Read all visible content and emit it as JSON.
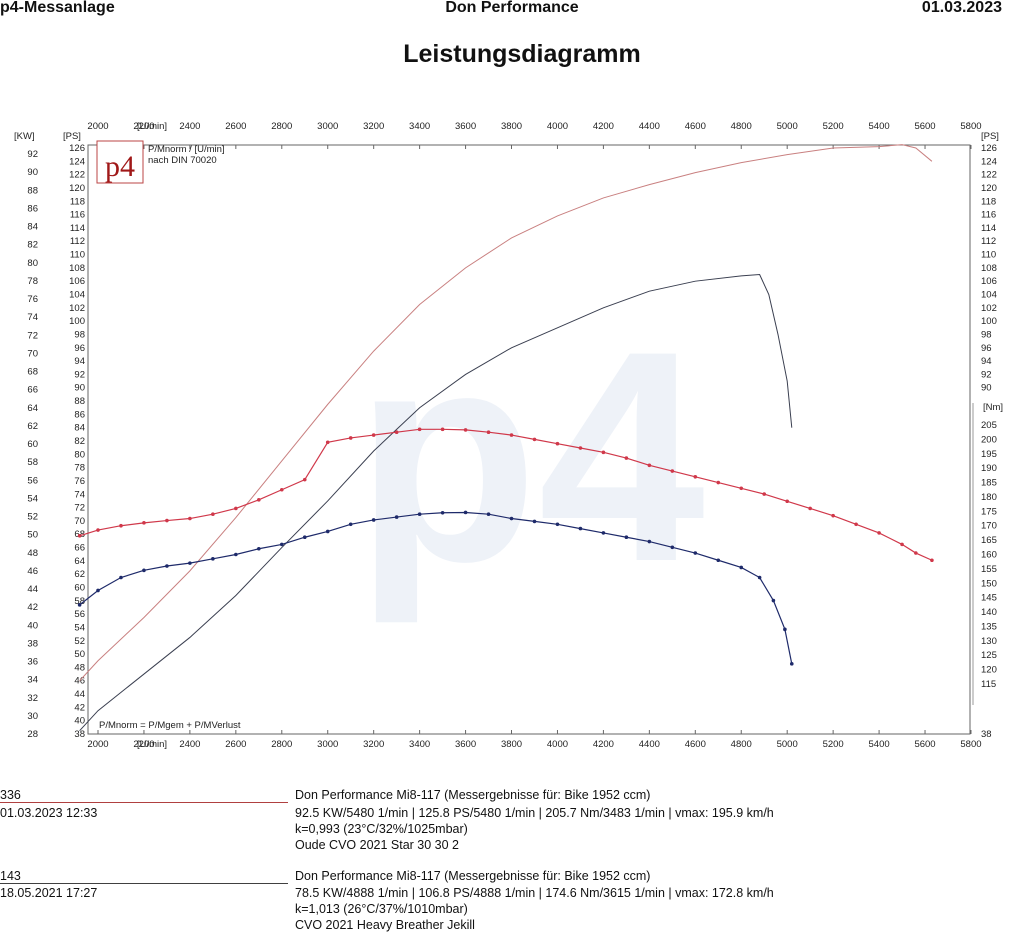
{
  "header": {
    "left": "p4-Messanlage",
    "center": "Don Performance",
    "right": "01.03.2023"
  },
  "title": "Leistungsdiagramm",
  "logo": {
    "text": "p4"
  },
  "legend_box": {
    "line1": "P/Mnorm / [U/min]",
    "line2": "nach DIN 70020"
  },
  "bottom_note": "P/Mnorm = P/Mgem + P/MVerlust",
  "axis_units": {
    "x": "[U/min]",
    "kw": "[KW]",
    "ps_left": "[PS]",
    "ps_right": "[PS]",
    "nm": "[Nm]"
  },
  "chart_data": {
    "type": "line",
    "x_ticks": [
      2000,
      2200,
      2400,
      2600,
      2800,
      3000,
      3200,
      3400,
      3600,
      3800,
      4000,
      4200,
      4400,
      4600,
      4800,
      5000,
      5200,
      5400,
      5600,
      5800
    ],
    "x_unit_position_after": 2000,
    "xlim": [
      1900,
      5800
    ],
    "kw_ticks": [
      28,
      30,
      32,
      34,
      36,
      38,
      40,
      42,
      44,
      46,
      48,
      50,
      52,
      54,
      56,
      58,
      60,
      62,
      64,
      66,
      68,
      70,
      72,
      74,
      76,
      78,
      80,
      82,
      84,
      86,
      88,
      90,
      92
    ],
    "ps_left_ticks": [
      38,
      40,
      42,
      44,
      46,
      48,
      50,
      52,
      54,
      56,
      58,
      60,
      62,
      64,
      66,
      68,
      70,
      72,
      74,
      76,
      78,
      80,
      82,
      84,
      86,
      88,
      90,
      92,
      94,
      96,
      98,
      100,
      102,
      104,
      106,
      108,
      110,
      112,
      114,
      116,
      118,
      120,
      122,
      124,
      126
    ],
    "ps_right_ticks": [
      90,
      92,
      94,
      96,
      98,
      100,
      102,
      104,
      106,
      108,
      110,
      112,
      114,
      116,
      118,
      120,
      122,
      124,
      126
    ],
    "nm_ticks": [
      115,
      120,
      125,
      130,
      135,
      140,
      145,
      150,
      155,
      160,
      165,
      170,
      175,
      180,
      185,
      190,
      195,
      200,
      205
    ],
    "nm_bottom_label": "38",
    "ps_range": [
      38,
      127
    ],
    "nm_range": [
      98.3,
      211.3
    ],
    "series": [
      {
        "kind": "power",
        "color": "#c98080",
        "rpm": [
          1920,
          2000,
          2200,
          2400,
          2600,
          2800,
          3000,
          3200,
          3400,
          3600,
          3800,
          4000,
          4200,
          4400,
          4600,
          4800,
          5000,
          5200,
          5400,
          5500,
          5560,
          5630
        ],
        "ps": [
          46,
          49,
          55.5,
          62.5,
          70.5,
          79,
          87.5,
          95.5,
          102.5,
          108,
          112.5,
          115.8,
          118.5,
          120.5,
          122.3,
          123.8,
          125,
          126,
          126.2,
          126.5,
          126,
          124
        ]
      },
      {
        "kind": "power",
        "color": "#3a3f50",
        "rpm": [
          1920,
          2000,
          2200,
          2400,
          2600,
          2800,
          3000,
          3200,
          3400,
          3600,
          3800,
          4000,
          4200,
          4400,
          4600,
          4800,
          4880,
          4920,
          4960,
          5000,
          5020
        ],
        "ps": [
          38.5,
          41.5,
          47,
          52.5,
          58.8,
          66,
          73,
          80.5,
          87,
          92,
          96,
          99,
          102,
          104.5,
          106,
          106.8,
          107,
          104,
          98,
          91,
          84
        ]
      },
      {
        "kind": "torque",
        "color": "#d0384a",
        "rpm": [
          1920,
          2000,
          2100,
          2200,
          2300,
          2400,
          2500,
          2600,
          2700,
          2800,
          2900,
          3000,
          3100,
          3200,
          3300,
          3400,
          3500,
          3600,
          3700,
          3800,
          3900,
          4000,
          4100,
          4200,
          4300,
          4400,
          4500,
          4600,
          4700,
          4800,
          4900,
          5000,
          5100,
          5200,
          5300,
          5400,
          5500,
          5560,
          5630
        ],
        "nm": [
          166.5,
          168.5,
          170,
          171,
          171.8,
          172.5,
          174,
          176,
          179,
          182.5,
          186,
          199,
          200.5,
          201.5,
          202.5,
          203.5,
          203.5,
          203.3,
          202.5,
          201.5,
          200,
          198.5,
          197,
          195.5,
          193.5,
          191,
          189,
          187,
          185,
          183,
          181,
          178.5,
          176,
          173.5,
          170.5,
          167.5,
          163.5,
          160.5,
          158
        ]
      },
      {
        "kind": "torque",
        "color": "#1e2a6a",
        "rpm": [
          1920,
          2000,
          2100,
          2200,
          2300,
          2400,
          2500,
          2600,
          2700,
          2800,
          2900,
          3000,
          3100,
          3200,
          3300,
          3400,
          3500,
          3600,
          3700,
          3800,
          3900,
          4000,
          4100,
          4200,
          4300,
          4400,
          4500,
          4600,
          4700,
          4800,
          4880,
          4940,
          4990,
          5020
        ],
        "nm": [
          142.5,
          147.5,
          152,
          154.5,
          156,
          157,
          158.5,
          160,
          162,
          163.5,
          166,
          168,
          170.5,
          172,
          173,
          174,
          174.5,
          174.6,
          174,
          172.5,
          171.5,
          170.5,
          169,
          167.5,
          166,
          164.5,
          162.5,
          160.5,
          158,
          155.5,
          152,
          144,
          134,
          122
        ]
      }
    ]
  },
  "records": [
    {
      "run_no": "336",
      "datetime": "01.03.2023  12:33",
      "line_color": "#b04040",
      "l1": "Don Performance Mi8-117 (Messergebnisse für: Bike 1952 ccm)",
      "l2": "92.5 KW/5480 1/min  |  125.8 PS/5480 1/min  |  205.7 Nm/3483 1/min | vmax: 195.9 km/h",
      "l3": "k=0,993 (23°C/32%/1025mbar)",
      "l4": "Oude CVO 2021 Star 30 30 2"
    },
    {
      "run_no": "143",
      "datetime": "18.05.2021  17:27",
      "line_color": "#404040",
      "l1": "Don Performance Mi8-117 (Messergebnisse für: Bike 1952 ccm)",
      "l2": "78.5 KW/4888 1/min  |  106.8 PS/4888 1/min  |  174.6 Nm/3615 1/min | vmax: 172.8 km/h",
      "l3": "k=1,013 (26°C/37%/1010mbar)",
      "l4": "CVO 2021 Heavy Breather Jekill"
    }
  ]
}
